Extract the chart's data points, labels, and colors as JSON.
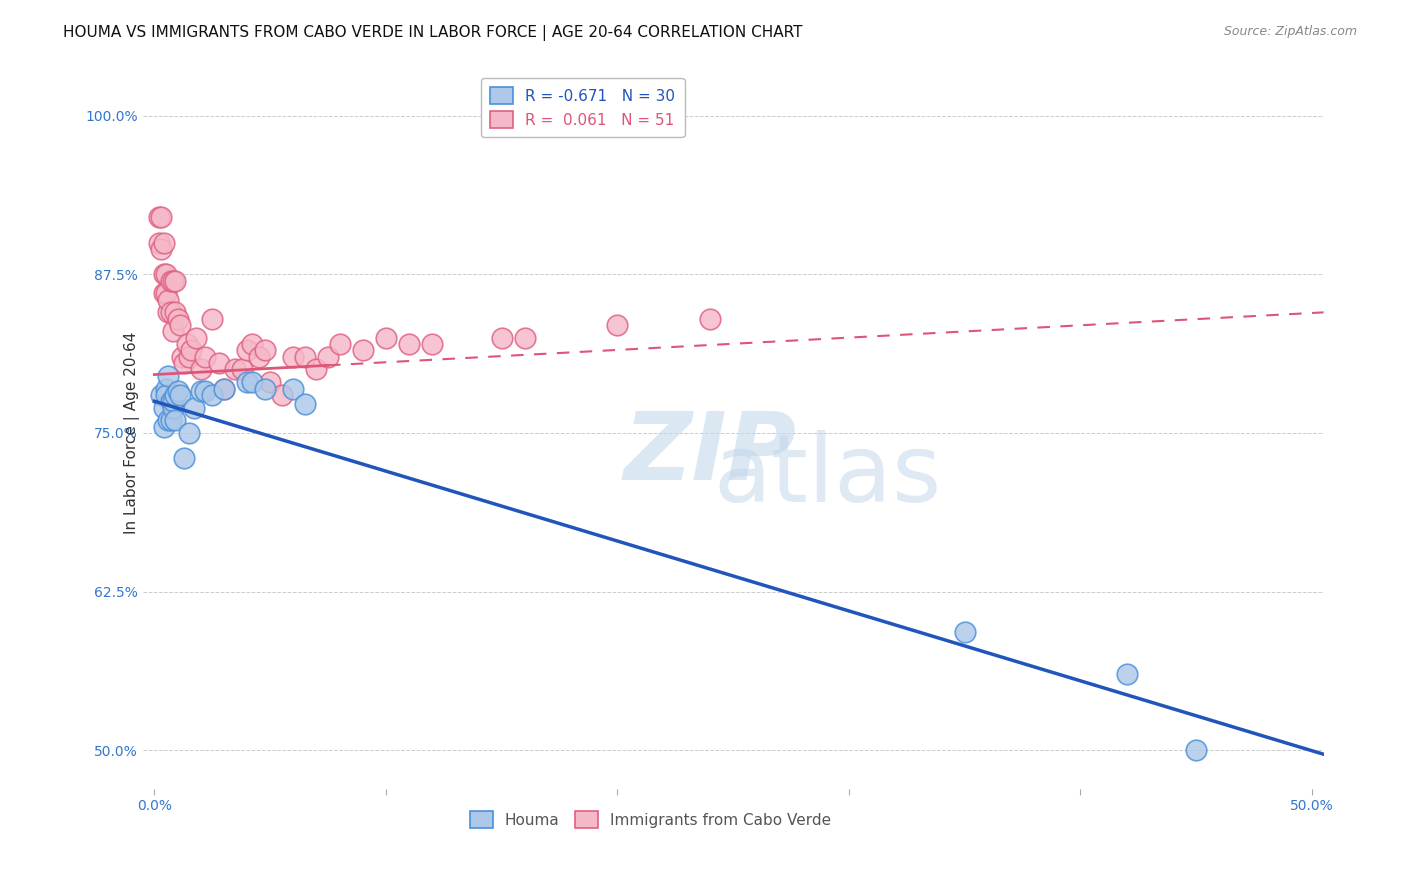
{
  "title": "HOUMA VS IMMIGRANTS FROM CABO VERDE IN LABOR FORCE | AGE 20-64 CORRELATION CHART",
  "source": "Source: ZipAtlas.com",
  "ylabel_label": "In Labor Force | Age 20-64",
  "xlim": [
    -0.005,
    0.505
  ],
  "ylim": [
    0.47,
    1.03
  ],
  "x_ticks": [
    0.0,
    0.1,
    0.2,
    0.3,
    0.4,
    0.5
  ],
  "x_tick_labels": [
    "0.0%",
    "",
    "",
    "",
    "",
    "50.0%"
  ],
  "y_ticks": [
    0.5,
    0.625,
    0.75,
    0.875,
    1.0
  ],
  "y_tick_labels": [
    "50.0%",
    "62.5%",
    "75.0%",
    "87.5%",
    "100.0%"
  ],
  "grid_color": "#cccccc",
  "background_color": "#ffffff",
  "houma_fill_color": "#adc8e8",
  "houma_edge_color": "#4a90d9",
  "cabo_fill_color": "#f5b8c8",
  "cabo_edge_color": "#e06080",
  "houma_line_color": "#2255bb",
  "cabo_line_color": "#dd5577",
  "houma_R": -0.671,
  "houma_N": 30,
  "cabo_R": 0.061,
  "cabo_N": 51,
  "legend_houma_label": "R = -0.671   N = 30",
  "legend_cabo_label": "R =  0.061   N = 51",
  "houma_line_x0": 0.0,
  "houma_line_y0": 0.775,
  "houma_line_x1": 0.505,
  "houma_line_y1": 0.497,
  "cabo_line_x0": 0.0,
  "cabo_line_y0": 0.796,
  "cabo_line_solid_end": 0.075,
  "cabo_line_x1": 0.505,
  "cabo_line_y1": 0.845,
  "houma_x": [
    0.003,
    0.004,
    0.004,
    0.005,
    0.005,
    0.006,
    0.006,
    0.007,
    0.007,
    0.008,
    0.008,
    0.009,
    0.009,
    0.01,
    0.011,
    0.013,
    0.015,
    0.017,
    0.02,
    0.022,
    0.025,
    0.03,
    0.04,
    0.042,
    0.048,
    0.06,
    0.065,
    0.35,
    0.42,
    0.45
  ],
  "houma_y": [
    0.78,
    0.77,
    0.755,
    0.785,
    0.78,
    0.795,
    0.76,
    0.775,
    0.76,
    0.77,
    0.775,
    0.76,
    0.78,
    0.783,
    0.78,
    0.73,
    0.75,
    0.77,
    0.783,
    0.783,
    0.78,
    0.785,
    0.79,
    0.79,
    0.785,
    0.785,
    0.773,
    0.593,
    0.56,
    0.5
  ],
  "cabo_x": [
    0.002,
    0.002,
    0.003,
    0.003,
    0.004,
    0.004,
    0.004,
    0.005,
    0.005,
    0.006,
    0.006,
    0.007,
    0.007,
    0.008,
    0.008,
    0.009,
    0.009,
    0.01,
    0.011,
    0.012,
    0.013,
    0.014,
    0.015,
    0.016,
    0.018,
    0.02,
    0.022,
    0.025,
    0.028,
    0.03,
    0.035,
    0.038,
    0.04,
    0.042,
    0.045,
    0.048,
    0.05,
    0.055,
    0.06,
    0.065,
    0.07,
    0.075,
    0.08,
    0.09,
    0.1,
    0.11,
    0.12,
    0.15,
    0.16,
    0.2,
    0.24
  ],
  "cabo_y": [
    0.92,
    0.9,
    0.92,
    0.895,
    0.9,
    0.875,
    0.86,
    0.875,
    0.86,
    0.845,
    0.855,
    0.87,
    0.845,
    0.87,
    0.83,
    0.87,
    0.845,
    0.84,
    0.835,
    0.81,
    0.805,
    0.82,
    0.81,
    0.815,
    0.825,
    0.8,
    0.81,
    0.84,
    0.805,
    0.785,
    0.8,
    0.8,
    0.815,
    0.82,
    0.81,
    0.815,
    0.79,
    0.78,
    0.81,
    0.81,
    0.8,
    0.81,
    0.82,
    0.815,
    0.825,
    0.82,
    0.82,
    0.825,
    0.825,
    0.835,
    0.84
  ],
  "watermark_zip": "ZIP",
  "watermark_atlas": "atlas",
  "title_fontsize": 11,
  "axis_label_fontsize": 11,
  "tick_fontsize": 10,
  "legend_fontsize": 11
}
